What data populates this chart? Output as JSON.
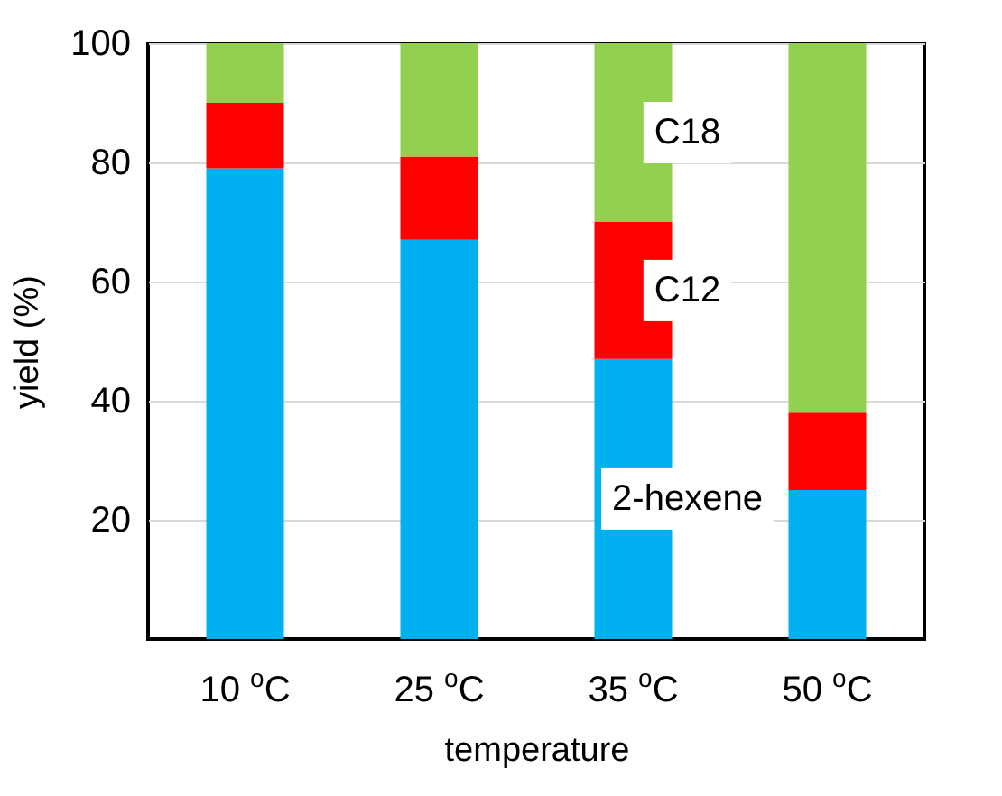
{
  "chart_data": {
    "type": "bar",
    "stacked": true,
    "xlabel": "temperature",
    "ylabel": "yield (%)",
    "categories": [
      "10 $^{o}$C",
      "25 $^{o}$C",
      "35 $^{o}$C",
      "50 $^{o}$C"
    ],
    "series": [
      {
        "name": "2-hexene",
        "color": "#00b0f0",
        "values": [
          79,
          67,
          47,
          25
        ]
      },
      {
        "name": "C12",
        "color": "#ff0000",
        "values": [
          11,
          14,
          23,
          13
        ]
      },
      {
        "name": "C18",
        "color": "#92d050",
        "values": [
          10,
          19,
          30,
          62
        ]
      }
    ],
    "ylim": [
      0,
      100
    ],
    "yticks": [
      20,
      40,
      60,
      80,
      100
    ],
    "grid": "y",
    "legend": false
  }
}
